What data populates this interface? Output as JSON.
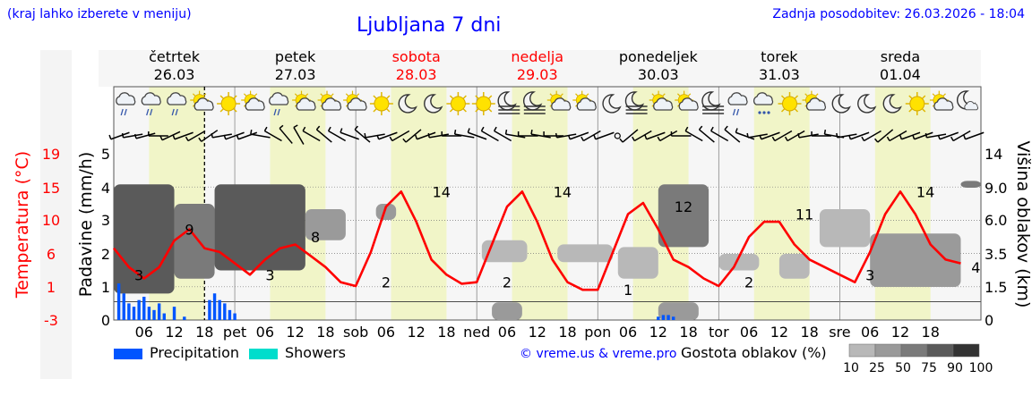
{
  "header": {
    "hint": "(kraj lahko izberete v meniju)",
    "title": "Ljubljana 7 dni",
    "updated": "Zadnja posodobitev: 26.03.2026 - 18:04"
  },
  "days": [
    {
      "name": "četrtek",
      "date": "26.03",
      "weekend": false,
      "abbr": ""
    },
    {
      "name": "petek",
      "date": "27.03",
      "weekend": false,
      "abbr": "pet"
    },
    {
      "name": "sobota",
      "date": "28.03",
      "weekend": true,
      "abbr": "sob"
    },
    {
      "name": "nedelja",
      "date": "29.03",
      "weekend": true,
      "abbr": "ned"
    },
    {
      "name": "ponedeljek",
      "date": "30.03",
      "weekend": false,
      "abbr": "pon"
    },
    {
      "name": "torek",
      "date": "31.03",
      "weekend": false,
      "abbr": "tor"
    },
    {
      "name": "sreda",
      "date": "01.04",
      "weekend": false,
      "abbr": "sre"
    }
  ],
  "hour_ticks": [
    "06",
    "12",
    "18"
  ],
  "icons": [
    "rain-cloud",
    "rain-cloud",
    "rain-cloud",
    "partly-cloudy",
    "sun",
    "partly-cloudy",
    "rain-cloud",
    "partly-cloudy",
    "partly-cloudy",
    "partly-cloudy",
    "sun",
    "moon",
    "moon",
    "sun",
    "sun",
    "moon-fog",
    "moon-fog",
    "partly-cloudy",
    "partly-cloudy",
    "moon",
    "moon-fog",
    "partly-cloudy",
    "partly-cloudy",
    "moon-fog",
    "rain-cloud",
    "snow-cloud",
    "sun",
    "partly-cloudy",
    "moon",
    "moon",
    "moon",
    "sun",
    "partly-cloudy",
    "moon-cloud"
  ],
  "axes": {
    "temp_label": "Temperatura (°C)",
    "temp_ticks": [
      "19",
      "15",
      "10",
      "6",
      "1",
      "-3"
    ],
    "precip_label": "Padavine (mm/h)",
    "precip_ticks": [
      "5",
      "4",
      "3",
      "2",
      "1",
      "0"
    ],
    "cloud_label": "Višina oblakov (km)",
    "cloud_ticks": [
      "14",
      "9.0",
      "6.0",
      "3.5",
      "1.5",
      "0"
    ]
  },
  "legend": {
    "precipitation": "Precipitation",
    "showers": "Showers",
    "credit": "© vreme.us & vreme.pro",
    "cloud_density": "Gostota oblakov (%)",
    "density_levels": [
      "10",
      "25",
      "50",
      "75",
      "90",
      "100"
    ]
  },
  "colors": {
    "temperature": "#ff0000",
    "precipitation": "#0055ff",
    "showers": "#00ddcc",
    "day_band": "#f1f5c8",
    "title": "#0000ff",
    "weekend": "#ff0000"
  },
  "chart_data": {
    "type": "line",
    "series": [
      {
        "name": "temperature",
        "unit": "°C",
        "x_hours": [
          0,
          3,
          6,
          9,
          12,
          15,
          18,
          21,
          24,
          27,
          30,
          33,
          36,
          39,
          42,
          45,
          48,
          51,
          54,
          57,
          60,
          63,
          66,
          69,
          72,
          75,
          78,
          81,
          84,
          87,
          90,
          93,
          96,
          99,
          102,
          105,
          108,
          111,
          114,
          117,
          120,
          123,
          126,
          129,
          132,
          135,
          138,
          141,
          144,
          147,
          150,
          153,
          156,
          159,
          162,
          165,
          168
        ],
        "values": [
          6.5,
          4,
          2.5,
          4,
          7.5,
          9,
          6.5,
          6,
          4.5,
          3,
          5,
          6.5,
          7,
          5.5,
          4,
          2,
          1.5,
          6,
          12,
          14,
          10,
          5,
          3,
          1.8,
          2,
          7,
          12,
          14,
          10,
          5,
          2,
          1,
          1,
          6,
          11,
          12.5,
          9,
          5,
          4,
          2.5,
          1.5,
          4,
          8,
          10,
          10,
          7,
          5,
          4,
          3,
          2,
          6,
          11,
          14,
          11,
          7,
          5,
          4.5
        ]
      },
      {
        "name": "precipitation",
        "unit": "mm/h",
        "x_hours": [
          1,
          2,
          3,
          4,
          5,
          6,
          7,
          8,
          9,
          10,
          12,
          14,
          19,
          20,
          21,
          22,
          23,
          24,
          108,
          109,
          110,
          111
        ],
        "values": [
          1.1,
          0.8,
          0.5,
          0.4,
          0.6,
          0.7,
          0.4,
          0.3,
          0.5,
          0.2,
          0.4,
          0.1,
          0.6,
          0.8,
          0.6,
          0.5,
          0.3,
          0.2,
          0.1,
          0.15,
          0.15,
          0.1
        ]
      }
    ],
    "temperature_labels": [
      {
        "hour": 5,
        "value": 3
      },
      {
        "hour": 15,
        "value": 9
      },
      {
        "hour": 31,
        "value": 3
      },
      {
        "hour": 40,
        "value": 8
      },
      {
        "hour": 54,
        "value": 2
      },
      {
        "hour": 65,
        "value": 14
      },
      {
        "hour": 78,
        "value": 2
      },
      {
        "hour": 89,
        "value": 14
      },
      {
        "hour": 102,
        "value": 1
      },
      {
        "hour": 113,
        "value": 12
      },
      {
        "hour": 126,
        "value": 2
      },
      {
        "hour": 137,
        "value": 11
      },
      {
        "hour": 150,
        "value": 3
      },
      {
        "hour": 161,
        "value": 14
      },
      {
        "hour": 171,
        "value": 4
      }
    ],
    "cloud_layers": [
      {
        "from_hour": 0,
        "to_hour": 12,
        "base_km": 1.2,
        "top_km": 9.5,
        "density": 90
      },
      {
        "from_hour": 12,
        "to_hour": 20,
        "base_km": 2.0,
        "top_km": 7.5,
        "density": 75
      },
      {
        "from_hour": 20,
        "to_hour": 38,
        "base_km": 2.5,
        "top_km": 9.5,
        "density": 90
      },
      {
        "from_hour": 38,
        "to_hour": 46,
        "base_km": 4.5,
        "top_km": 7.0,
        "density": 50
      },
      {
        "from_hour": 52,
        "to_hour": 56,
        "base_km": 6.0,
        "top_km": 7.5,
        "density": 50
      },
      {
        "from_hour": 73,
        "to_hour": 82,
        "base_km": 3.0,
        "top_km": 4.5,
        "density": 25
      },
      {
        "from_hour": 75,
        "to_hour": 81,
        "base_km": 0.0,
        "top_km": 0.8,
        "density": 50
      },
      {
        "from_hour": 88,
        "to_hour": 99,
        "base_km": 3.0,
        "top_km": 4.2,
        "density": 25
      },
      {
        "from_hour": 100,
        "to_hour": 108,
        "base_km": 2.0,
        "top_km": 4.0,
        "density": 25
      },
      {
        "from_hour": 108,
        "to_hour": 118,
        "base_km": 4.0,
        "top_km": 9.5,
        "density": 75
      },
      {
        "from_hour": 108,
        "to_hour": 116,
        "base_km": 0.0,
        "top_km": 0.8,
        "density": 50
      },
      {
        "from_hour": 120,
        "to_hour": 128,
        "base_km": 2.5,
        "top_km": 3.5,
        "density": 25
      },
      {
        "from_hour": 132,
        "to_hour": 138,
        "base_km": 2.0,
        "top_km": 3.5,
        "density": 25
      },
      {
        "from_hour": 140,
        "to_hour": 150,
        "base_km": 4.0,
        "top_km": 7.0,
        "density": 25
      },
      {
        "from_hour": 150,
        "to_hour": 168,
        "base_km": 1.5,
        "top_km": 5.0,
        "density": 50
      },
      {
        "from_hour": 168,
        "to_hour": 172,
        "base_km": 9.0,
        "top_km": 10.0,
        "density": 75
      }
    ],
    "wind_dir_deg": [
      250,
      260,
      255,
      270,
      245,
      250,
      240,
      235,
      260,
      250,
      250,
      280,
      300,
      320,
      330,
      300,
      310,
      300,
      290,
      310,
      260,
      250,
      240,
      230,
      250,
      260,
      270,
      280,
      290,
      300,
      300,
      280,
      270,
      280,
      270,
      260,
      250,
      240,
      250,
      0,
      230,
      240,
      250,
      240,
      270,
      300,
      310,
      300,
      310,
      290,
      260,
      250,
      240,
      240,
      260,
      270,
      280,
      260,
      250,
      240,
      230,
      240,
      250,
      250,
      260,
      250,
      240,
      250
    ],
    "xlim_hours": [
      0,
      172
    ],
    "ylim_temp": [
      -3,
      19
    ],
    "ylim_precip": [
      0,
      5
    ],
    "now_marker_hour": 18,
    "grid": true
  }
}
